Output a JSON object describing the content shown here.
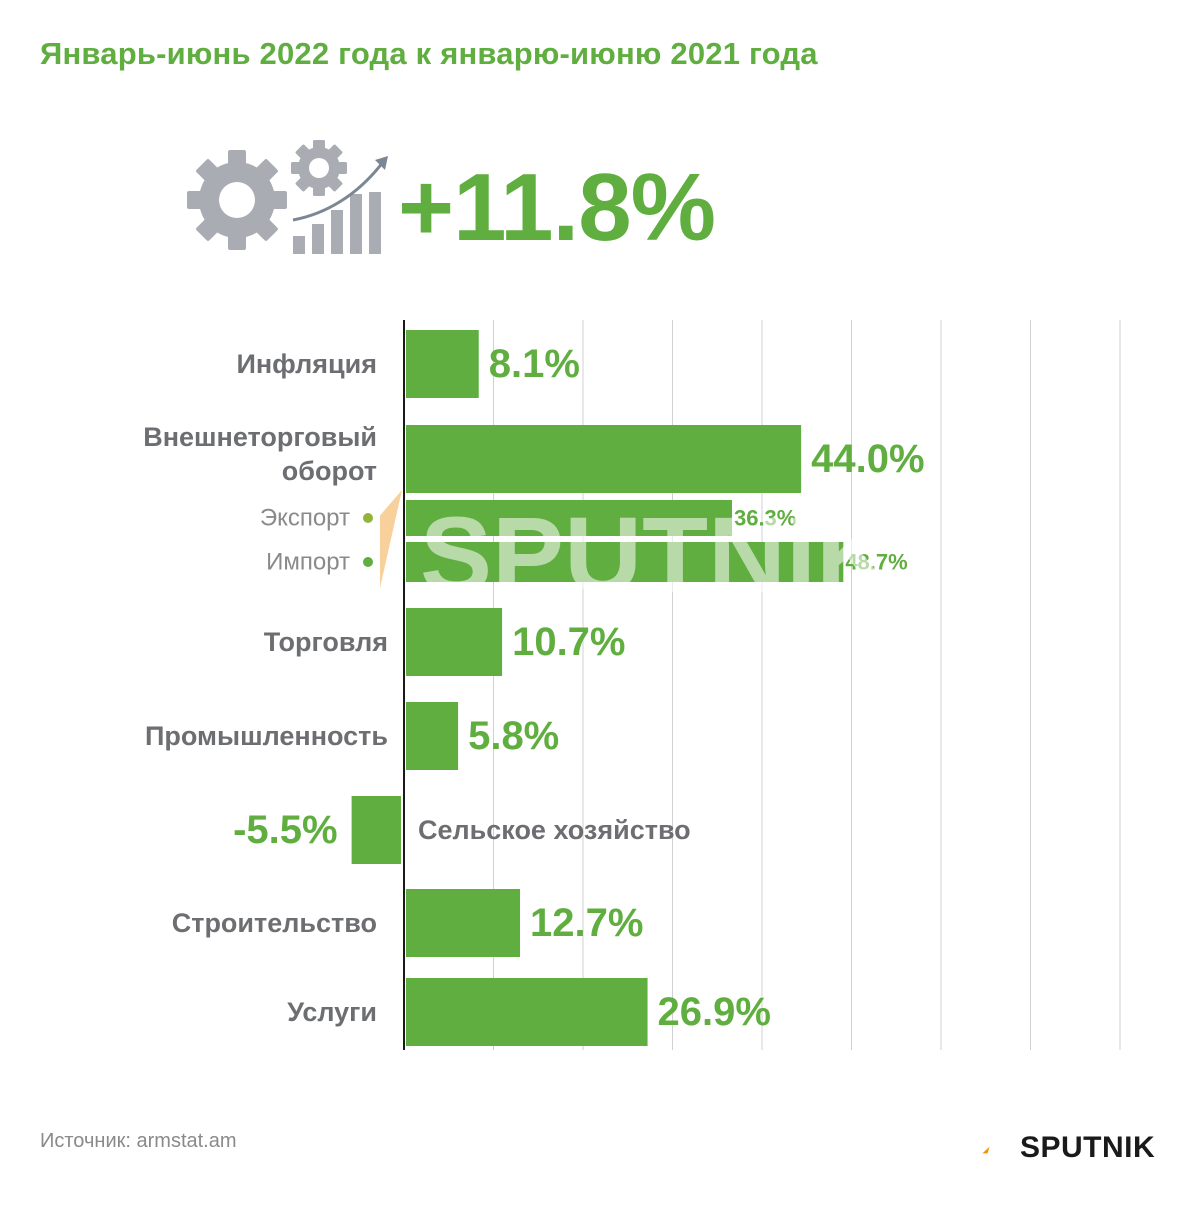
{
  "header": {
    "title": "Январь-июнь 2022 года к январю-июню 2021 года",
    "headline_value": "+11.8%"
  },
  "icons": {
    "hero": "gears-growth-chart-icon",
    "logo": "sputnik-logo-icon"
  },
  "colors": {
    "accent": "#5fae3f",
    "label_text": "#6d6e71",
    "grid": "#d0d0d0",
    "icon_gray": "#a9adb3",
    "sub_dot_export": "#93b43a"
  },
  "chart_data": {
    "type": "bar",
    "orientation": "horizontal",
    "unit": "%",
    "xlim": [
      -6,
      50
    ],
    "grid": true,
    "categories": [
      {
        "label": "Инфляция",
        "value": 8.1,
        "value_label": "8.1%"
      },
      {
        "label": "Внешнеторговый оборот",
        "value": 44.0,
        "value_label": "44.0%",
        "sub": [
          {
            "label": "Экспорт",
            "value": 36.3,
            "value_label": "36.3%"
          },
          {
            "label": "Импорт",
            "value": 48.7,
            "value_label": "48.7%"
          }
        ]
      },
      {
        "label": "Торговля",
        "value": 10.7,
        "value_label": "10.7%"
      },
      {
        "label": "Промышленность",
        "value": 5.8,
        "value_label": "5.8%"
      },
      {
        "label": "Сельское хозяйство",
        "value": -5.5,
        "value_label": "-5.5%"
      },
      {
        "label": "Строительство",
        "value": 12.7,
        "value_label": "12.7%"
      },
      {
        "label": "Услуги",
        "value": 26.9,
        "value_label": "26.9%"
      }
    ]
  },
  "watermark": {
    "text": "SPUTNIK"
  },
  "footer": {
    "source": "Источник: armstat.am",
    "brand": "SPUTNIK"
  }
}
